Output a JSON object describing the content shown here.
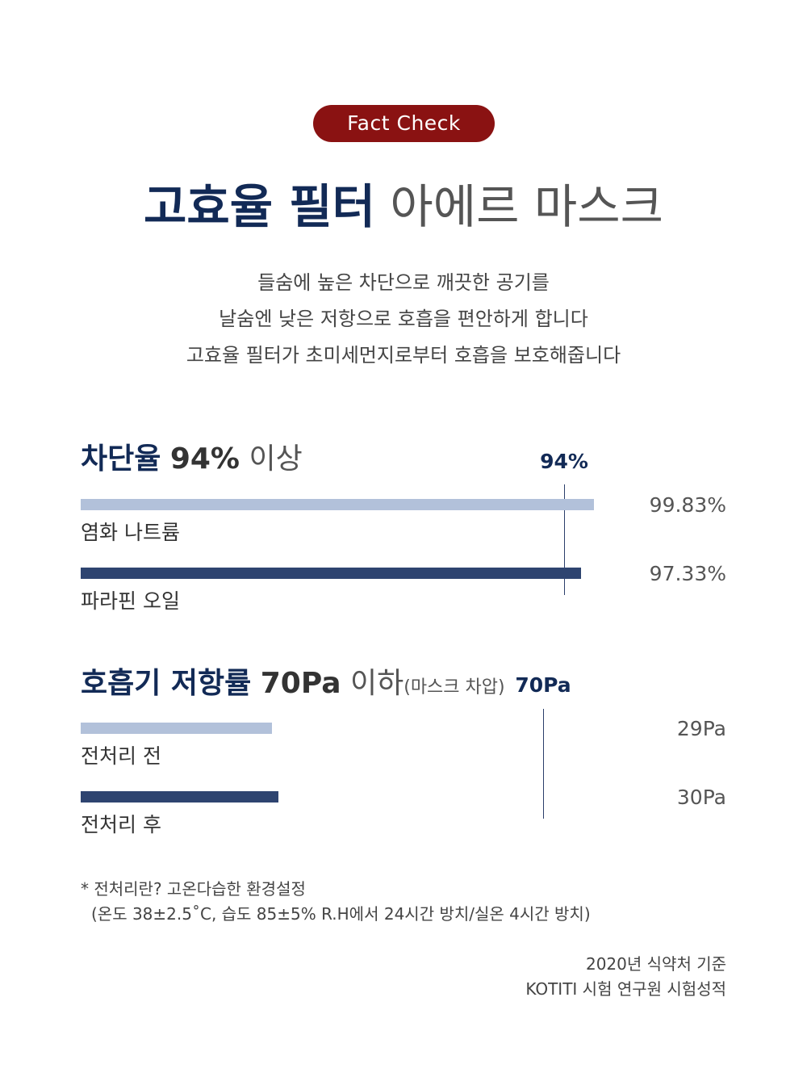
{
  "badge": "Fact Check",
  "headline": {
    "strong": "고효율 필터",
    "light": "아에르 마스크"
  },
  "description": [
    "들숨에 높은 차단으로 깨끗한 공기를",
    "날숨엔 낮은 저항으로 호흡을 편안하게 합니다",
    "고효율 필터가 초미세먼지로부터 호흡을 보호해줍니다"
  ],
  "chart_data": [
    {
      "type": "bar",
      "orientation": "horizontal",
      "title": {
        "bold": "차단율",
        "value": "94%",
        "suffix": "이상"
      },
      "threshold": {
        "value": 94,
        "label": "94%"
      },
      "xlim": [
        0,
        100.9
      ],
      "categories": [
        "염화 나트륨",
        "파라핀 오일"
      ],
      "values": [
        99.83,
        97.33
      ],
      "value_labels": [
        "99.83%",
        "97.33%"
      ],
      "colors": [
        "#b2c1da",
        "#2e4470"
      ]
    },
    {
      "type": "bar",
      "orientation": "horizontal",
      "title": {
        "bold": "호흡기 저항률",
        "value": "70Pa",
        "suffix": "이하",
        "note": "(마스크 차압)"
      },
      "threshold": {
        "value": 70,
        "label": "70Pa"
      },
      "xlim": [
        0,
        78.6
      ],
      "categories": [
        "전처리 전",
        "전처리 후"
      ],
      "values": [
        29,
        30
      ],
      "value_labels": [
        "29Pa",
        "30Pa"
      ],
      "colors": [
        "#b2c1da",
        "#2e4470"
      ]
    }
  ],
  "footnote": [
    "* 전처리란? 고온다습한 환경설정",
    "(온도 38±2.5˚C, 습도 85±5% R.H에서 24시간 방치/실온 4시간 방치)"
  ],
  "source": [
    "2020년 식약처 기준",
    "KOTITI 시험 연구원 시험성적"
  ]
}
